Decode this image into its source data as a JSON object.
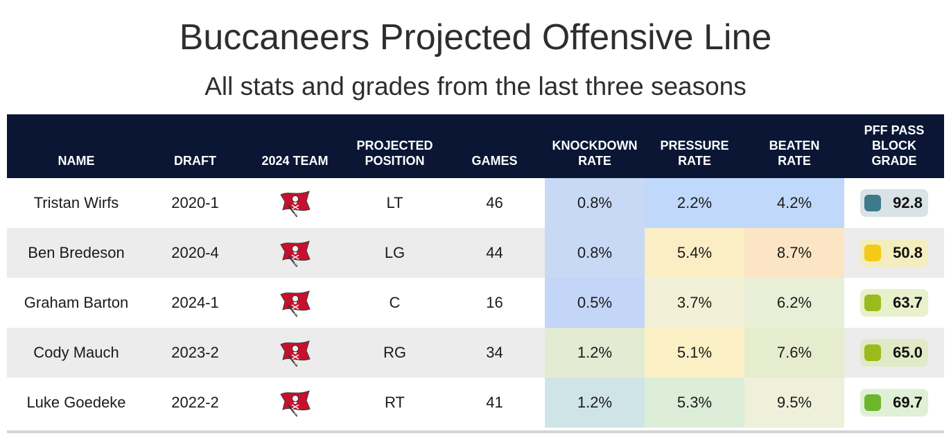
{
  "title": "Buccaneers Projected Offensive Line",
  "subtitle": "All stats and grades from the last three seasons",
  "header": {
    "name": [
      "NAME"
    ],
    "draft": [
      "DRAFT"
    ],
    "team": [
      "2024 TEAM"
    ],
    "position": [
      "PROJECTED",
      "POSITION"
    ],
    "games": [
      "GAMES"
    ],
    "knockdown": [
      "KNOCKDOWN",
      "RATE"
    ],
    "pressure": [
      "PRESSURE",
      "RATE"
    ],
    "beaten": [
      "BEATEN",
      "RATE"
    ],
    "grade": [
      "PFF PASS",
      "BLOCK",
      "GRADE"
    ]
  },
  "team_logo_icon": "buccaneers-flag-logo-icon",
  "rows": [
    {
      "name": "Tristan Wirfs",
      "draft": "2020-1",
      "position": "LT",
      "games": "46",
      "knockdown": "0.8%",
      "pressure": "2.2%",
      "beaten": "4.2%",
      "grade": "92.8",
      "colors": {
        "knockdown": "#c8d9f6",
        "pressure": "#c0d8f9",
        "beaten": "#c0d8f9",
        "grade_bg": "#d9e3e6",
        "grade_dot": "#3d7a8c"
      }
    },
    {
      "name": "Ben Bredeson",
      "draft": "2020-4",
      "position": "LG",
      "games": "44",
      "knockdown": "0.8%",
      "pressure": "5.4%",
      "beaten": "8.7%",
      "grade": "50.8",
      "colors": {
        "knockdown": "#c8d9f6",
        "pressure": "#fbedc4",
        "beaten": "#fce5c4",
        "grade_bg": "#f4edbd",
        "grade_dot": "#f5c918"
      }
    },
    {
      "name": "Graham Barton",
      "draft": "2024-1",
      "position": "C",
      "games": "16",
      "knockdown": "0.5%",
      "pressure": "3.7%",
      "beaten": "6.2%",
      "grade": "63.7",
      "colors": {
        "knockdown": "#c3d6f7",
        "pressure": "#f2f0d6",
        "beaten": "#e8efd6",
        "grade_bg": "#e8f0cc",
        "grade_dot": "#9bbb1c"
      }
    },
    {
      "name": "Cody Mauch",
      "draft": "2023-2",
      "position": "RG",
      "games": "34",
      "knockdown": "1.2%",
      "pressure": "5.1%",
      "beaten": "7.6%",
      "grade": "65.0",
      "colors": {
        "knockdown": "#e3ebd3",
        "pressure": "#fbf0c6",
        "beaten": "#e6ecce",
        "grade_bg": "#e1e9c7",
        "grade_dot": "#9bbb1c"
      }
    },
    {
      "name": "Luke Goedeke",
      "draft": "2022-2",
      "position": "RT",
      "games": "41",
      "knockdown": "1.2%",
      "pressure": "5.3%",
      "beaten": "9.5%",
      "grade": "69.7",
      "colors": {
        "knockdown": "#cfe4e6",
        "pressure": "#dcedd8",
        "beaten": "#eef0da",
        "grade_bg": "#dff0d6",
        "grade_dot": "#6db52a"
      }
    }
  ]
}
